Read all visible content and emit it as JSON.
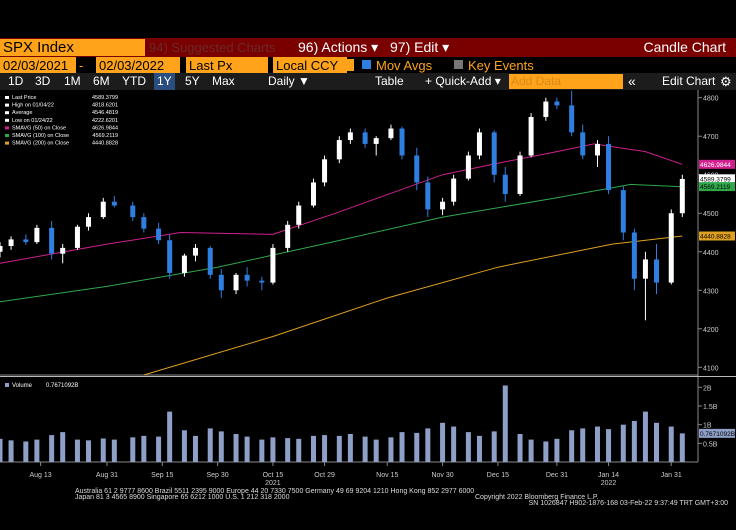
{
  "toolbar": {
    "security": "SPX Index",
    "suggested": "94) Suggested Charts",
    "actions": "96) Actions ▾",
    "edit": "97) Edit ▾",
    "chart_kind": "Candle Chart",
    "start_date": "02/03/2021",
    "dash": "-",
    "end_date": "02/03/2022",
    "field": "Last Px",
    "currency": "Local CCY",
    "mov_avgs": "Mov Avgs",
    "key_events": "Key Events",
    "periods": [
      "1D",
      "3D",
      "1M",
      "6M",
      "YTD",
      "1Y",
      "5Y",
      "Max"
    ],
    "active_period": "1Y",
    "frequency": "Daily ▼",
    "table": "Table",
    "quick_add": "+ Quick-Add ▾",
    "add_data": "Add Data",
    "collapse": "«",
    "edit_chart": "Edit Chart"
  },
  "chart_data": {
    "type": "candlestick",
    "stats": [
      {
        "name": "Last Price",
        "value": 4589.3799,
        "color": "#ffffff"
      },
      {
        "name": "High on 01/04/22",
        "value": 4818.6201,
        "color": "#ffffff"
      },
      {
        "name": "Average",
        "value": 4546.4819,
        "color": "#ffffff"
      },
      {
        "name": "Low on 01/24/22",
        "value": 4222.6201,
        "color": "#ffffff"
      },
      {
        "name": "SMAVG (50) on Close",
        "value": 4626.9844,
        "color": "#d0208f"
      },
      {
        "name": "SMAVG (100) on Close",
        "value": 4569.2119,
        "color": "#2fa84a"
      },
      {
        "name": "SMAVG (200) on Close",
        "value": 4440.8828,
        "color": "#e0a020"
      }
    ],
    "xlim": [
      "2021-08-02",
      "2022-02-04"
    ],
    "xticks": [
      {
        "value": "2021-08-13",
        "label": "Aug 13"
      },
      {
        "value": "2021-08-31",
        "label": "Aug 31"
      },
      {
        "value": "2021-09-15",
        "label": "Sep 15"
      },
      {
        "value": "2021-09-30",
        "label": "Sep 30"
      },
      {
        "value": "2021-10-15",
        "label": "Oct 15"
      },
      {
        "value": "2021-10-29",
        "label": "Oct 29"
      },
      {
        "value": "2021-11-15",
        "label": "Nov 15"
      },
      {
        "value": "2021-11-30",
        "label": "Nov 30"
      },
      {
        "value": "2021-12-15",
        "label": "Dec 15"
      },
      {
        "value": "2021-12-31",
        "label": "Dec 31"
      },
      {
        "value": "2022-01-14",
        "label": "Jan 14"
      },
      {
        "value": "2022-01-31",
        "label": "Jan 31"
      }
    ],
    "year_labels": [
      {
        "value": "2021-10-15",
        "label": "2021"
      },
      {
        "value": "2022-01-14",
        "label": "2022"
      }
    ],
    "ylim": [
      4080,
      4820
    ],
    "yticks": [
      4100,
      4200,
      4300,
      4400,
      4500,
      4600,
      4700,
      4800
    ],
    "up_color": "#ffffff",
    "down_color": "#2f7fe0",
    "dates": [
      "2021-08-02",
      "2021-08-05",
      "2021-08-09",
      "2021-08-12",
      "2021-08-16",
      "2021-08-19",
      "2021-08-23",
      "2021-08-26",
      "2021-08-30",
      "2021-09-02",
      "2021-09-07",
      "2021-09-10",
      "2021-09-14",
      "2021-09-17",
      "2021-09-21",
      "2021-09-24",
      "2021-09-28",
      "2021-10-01",
      "2021-10-05",
      "2021-10-08",
      "2021-10-12",
      "2021-10-15",
      "2021-10-19",
      "2021-10-22",
      "2021-10-26",
      "2021-10-29",
      "2021-11-02",
      "2021-11-05",
      "2021-11-09",
      "2021-11-12",
      "2021-11-16",
      "2021-11-19",
      "2021-11-23",
      "2021-11-26",
      "2021-11-30",
      "2021-12-03",
      "2021-12-07",
      "2021-12-10",
      "2021-12-14",
      "2021-12-17",
      "2021-12-21",
      "2021-12-24",
      "2021-12-28",
      "2021-12-31",
      "2022-01-04",
      "2022-01-07",
      "2022-01-11",
      "2022-01-14",
      "2022-01-18",
      "2022-01-21",
      "2022-01-24",
      "2022-01-27",
      "2022-01-31",
      "2022-02-03"
    ],
    "open": [
      4400,
      4415,
      4432,
      4425,
      4462,
      4395,
      4410,
      4465,
      4490,
      4530,
      4520,
      4490,
      4460,
      4430,
      4345,
      4390,
      4410,
      4340,
      4300,
      4340,
      4325,
      4320,
      4410,
      4470,
      4520,
      4580,
      4640,
      4690,
      4710,
      4680,
      4695,
      4720,
      4650,
      4580,
      4510,
      4530,
      4590,
      4650,
      4710,
      4600,
      4550,
      4650,
      4750,
      4790,
      4780,
      4710,
      4650,
      4680,
      4560,
      4450,
      4330,
      4380,
      4320,
      4500
    ],
    "high": [
      4425,
      4440,
      4445,
      4470,
      4480,
      4420,
      4470,
      4500,
      4540,
      4545,
      4530,
      4500,
      4475,
      4445,
      4395,
      4420,
      4415,
      4355,
      4345,
      4360,
      4335,
      4420,
      4480,
      4530,
      4590,
      4650,
      4700,
      4720,
      4720,
      4700,
      4730,
      4725,
      4670,
      4595,
      4540,
      4600,
      4660,
      4720,
      4715,
      4620,
      4660,
      4760,
      4800,
      4800,
      4818,
      4730,
      4690,
      4700,
      4570,
      4460,
      4400,
      4420,
      4510,
      4600
    ],
    "low": [
      4385,
      4405,
      4418,
      4420,
      4380,
      4370,
      4405,
      4455,
      4485,
      4515,
      4480,
      4450,
      4420,
      4330,
      4335,
      4375,
      4330,
      4280,
      4290,
      4310,
      4300,
      4315,
      4400,
      4460,
      4515,
      4570,
      4630,
      4680,
      4670,
      4650,
      4690,
      4640,
      4560,
      4490,
      4495,
      4520,
      4585,
      4640,
      4580,
      4530,
      4545,
      4645,
      4740,
      4770,
      4700,
      4640,
      4620,
      4550,
      4430,
      4300,
      4222,
      4290,
      4315,
      4490
    ],
    "close": [
      4415,
      4432,
      4425,
      4462,
      4395,
      4410,
      4465,
      4490,
      4530,
      4520,
      4490,
      4460,
      4430,
      4345,
      4390,
      4410,
      4340,
      4300,
      4340,
      4325,
      4320,
      4410,
      4470,
      4520,
      4580,
      4640,
      4690,
      4710,
      4680,
      4695,
      4720,
      4650,
      4580,
      4510,
      4530,
      4590,
      4650,
      4710,
      4600,
      4550,
      4650,
      4750,
      4790,
      4780,
      4710,
      4650,
      4680,
      4560,
      4450,
      4330,
      4380,
      4320,
      4500,
      4589
    ],
    "moving_averages": [
      {
        "stat": 4,
        "x": [
          "2021-08-02",
          "2021-08-31",
          "2021-09-20",
          "2021-10-15",
          "2021-11-01",
          "2021-11-30",
          "2021-12-15",
          "2021-12-31",
          "2022-01-10",
          "2022-01-24",
          "2022-02-03"
        ],
        "values": [
          4370,
          4420,
          4450,
          4445,
          4500,
          4600,
          4630,
          4660,
          4680,
          4660,
          4627
        ]
      },
      {
        "stat": 5,
        "x": [
          "2021-08-02",
          "2021-08-31",
          "2021-09-30",
          "2021-10-31",
          "2021-11-30",
          "2021-12-31",
          "2022-01-20",
          "2022-02-03"
        ],
        "values": [
          4270,
          4310,
          4360,
          4425,
          4490,
          4540,
          4575,
          4569
        ]
      },
      {
        "stat": 6,
        "x": [
          "2021-09-10",
          "2021-10-15",
          "2021-11-15",
          "2021-12-15",
          "2022-01-15",
          "2022-02-03"
        ],
        "values": [
          4080,
          4180,
          4280,
          4360,
          4420,
          4441
        ]
      }
    ],
    "volume": {
      "name": "Volume",
      "color": "#8e9fc8",
      "ylim": [
        0,
        2.25
      ],
      "yticks": [
        {
          "value": 0.5,
          "label": "0.5B"
        },
        {
          "value": 1,
          "label": "1B"
        },
        {
          "value": 1.5,
          "label": "1.5B"
        },
        {
          "value": 2,
          "label": "2B"
        }
      ],
      "values": [
        0.62,
        0.58,
        0.55,
        0.6,
        0.72,
        0.8,
        0.6,
        0.58,
        0.63,
        0.6,
        0.66,
        0.7,
        0.68,
        1.35,
        0.85,
        0.7,
        0.9,
        0.82,
        0.75,
        0.68,
        0.6,
        0.66,
        0.64,
        0.62,
        0.7,
        0.72,
        0.7,
        0.75,
        0.68,
        0.6,
        0.66,
        0.8,
        0.78,
        0.9,
        1.05,
        0.95,
        0.8,
        0.7,
        0.82,
        2.05,
        0.75,
        0.6,
        0.55,
        0.62,
        0.85,
        0.9,
        0.95,
        0.88,
        1.0,
        1.1,
        1.35,
        1.05,
        0.95,
        0.7671092
      ],
      "last_label": "0.7671092B"
    }
  },
  "footer": [
    "Australia 61 2 9777 8600 Brazil 5511 2395 9000 Europe 44 20 7330 7500 Germany 49 69 9204 1210 Hong Kong 852 2977 6000",
    "Japan 81 3 4565 8900      Singapore 65 6212 1000      U.S. 1 212 318 2000",
    "Copyright 2022 Bloomberg Finance L.P.",
    "SN 1026847 H902-1876-168 03-Feb-22  9:37:49 TRT  GMT+3:00"
  ]
}
